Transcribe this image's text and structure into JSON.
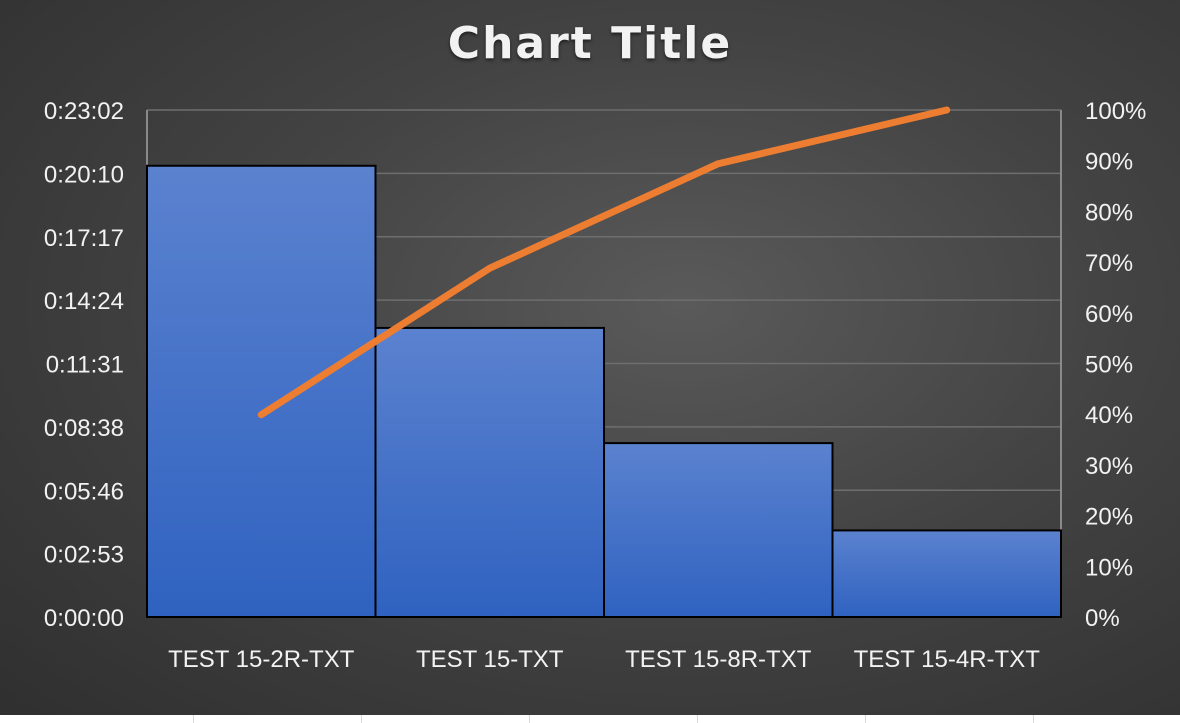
{
  "chart_data": {
    "type": "bar",
    "title": "Chart Title",
    "categories": [
      "TEST 15-2R-TXT",
      "TEST 15-TXT",
      "TEST 15-8R-TXT",
      "TEST 15-4R-TXT"
    ],
    "series": [
      {
        "kind": "bar",
        "axis": "left",
        "values_seconds": [
          1230,
          788,
          474,
          236
        ],
        "color": "#4472c4"
      },
      {
        "kind": "line",
        "axis": "right",
        "values_percent": [
          39.9,
          68.8,
          89.4,
          100
        ],
        "color": "#ed7d31"
      }
    ],
    "y_left": {
      "ticks": [
        "0:00:00",
        "0:02:53",
        "0:05:46",
        "0:08:38",
        "0:11:31",
        "0:14:24",
        "0:17:17",
        "0:20:10",
        "0:23:02"
      ],
      "ylim_seconds": [
        0,
        1382
      ]
    },
    "y_right": {
      "ticks": [
        "0%",
        "10%",
        "20%",
        "30%",
        "40%",
        "50%",
        "60%",
        "70%",
        "80%",
        "90%",
        "100%"
      ],
      "ylim_percent": [
        0,
        100
      ]
    },
    "grid": true,
    "legend": "none"
  }
}
